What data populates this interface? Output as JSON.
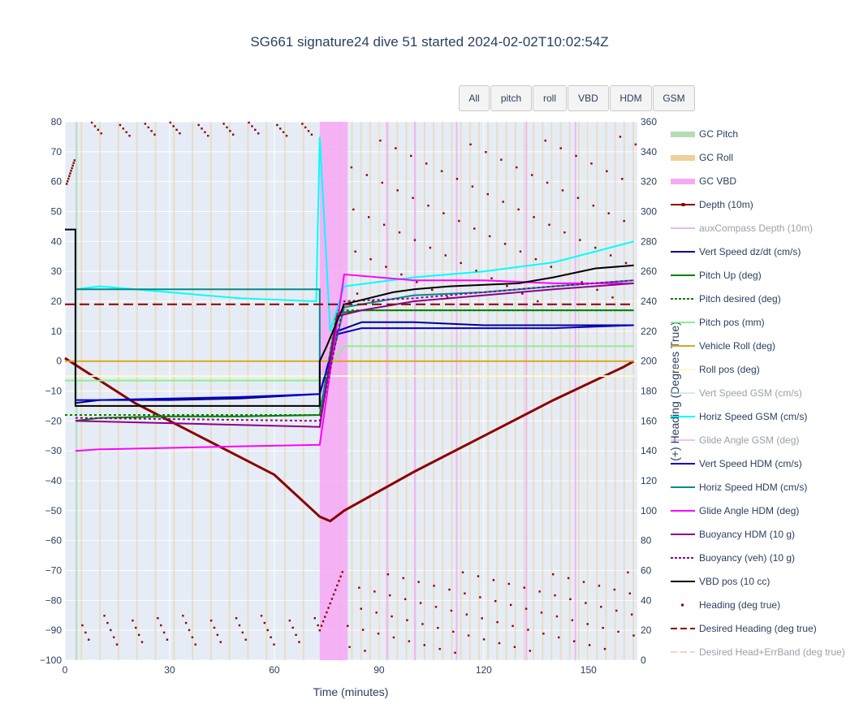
{
  "chart_data": {
    "type": "line",
    "title": "SG661 signature24 dive 51 started 2024-02-02T10:02:54Z",
    "xlabel": "Time (minutes)",
    "ylabel": "",
    "y2label": "(+) Heading (Degrees True)",
    "xlim": [
      0,
      164
    ],
    "ylim": [
      -100,
      80
    ],
    "y2lim": [
      0,
      360
    ],
    "xticks": [
      "0",
      "30",
      "60",
      "90",
      "120",
      "150"
    ],
    "yticks": [
      "80",
      "70",
      "60",
      "50",
      "40",
      "30",
      "20",
      "10",
      "0",
      "−10",
      "−20",
      "−30",
      "−40",
      "−50",
      "−60",
      "−70",
      "−80",
      "−90",
      "−100"
    ],
    "y2ticks": [
      "360",
      "340",
      "320",
      "300",
      "280",
      "260",
      "240",
      "220",
      "200",
      "180",
      "160",
      "140",
      "120",
      "100",
      "80",
      "60",
      "40",
      "20",
      "0"
    ],
    "grid": true,
    "legend_position": "right",
    "gc_vbd_band": [
      73,
      81
    ],
    "series": [
      {
        "name": "GC Pitch",
        "color": "#b6dcb6",
        "style": "band"
      },
      {
        "name": "GC Roll",
        "color": "#ecd198",
        "style": "band"
      },
      {
        "name": "GC VBD",
        "color": "#f7a8f5",
        "style": "band"
      },
      {
        "name": "Depth (10m)",
        "color": "#8b0000",
        "style": "line+marker",
        "x": [
          0,
          20,
          40,
          60,
          73,
          76,
          80,
          100,
          120,
          140,
          160,
          163
        ],
        "y": [
          1,
          -14,
          -26,
          -38,
          -52,
          -53.5,
          -50,
          -37,
          -25,
          -13,
          -2,
          0
        ]
      },
      {
        "name": "auxCompass Depth (10m)",
        "color": "#c17fd6",
        "style": "line",
        "visible": false
      },
      {
        "name": "Vert Speed dz/dt (cm/s)",
        "color": "#00008b",
        "style": "line",
        "x": [
          3,
          10,
          30,
          50,
          73,
          78,
          85,
          100,
          120,
          140,
          163
        ],
        "y": [
          -14,
          -13,
          -13,
          -12.5,
          -11,
          10,
          13,
          13,
          12,
          12,
          12
        ]
      },
      {
        "name": "Pitch Up (deg)",
        "color": "#008000",
        "style": "line",
        "x": [
          3,
          10,
          30,
          50,
          73,
          78,
          85,
          100,
          120,
          140,
          163
        ],
        "y": [
          -20,
          -19,
          -18.5,
          -18.5,
          -18,
          16,
          17,
          17,
          17,
          17,
          17
        ]
      },
      {
        "name": "Pitch desired (deg)",
        "color": "#008000",
        "style": "dot",
        "x": [
          0,
          73,
          78,
          163
        ],
        "y": [
          -18,
          -18,
          17,
          17
        ]
      },
      {
        "name": "Pitch pos (mm)",
        "color": "#90ee90",
        "style": "line",
        "x": [
          0,
          73,
          80,
          163
        ],
        "y": [
          -6.5,
          -6.5,
          5,
          5
        ]
      },
      {
        "name": "Vehicle Roll (deg)",
        "color": "#daa520",
        "style": "line",
        "x": [
          0,
          73,
          163
        ],
        "y": [
          0,
          0,
          0
        ]
      },
      {
        "name": "Roll pos (deg)",
        "color": "#fffacd",
        "style": "line",
        "x": [
          0,
          163
        ],
        "y": [
          -5,
          -5
        ]
      },
      {
        "name": "Vert Speed GSM (cm/s)",
        "color": "#add8e6",
        "style": "line",
        "visible": false
      },
      {
        "name": "Horiz Speed GSM (cm/s)",
        "color": "#00ffff",
        "style": "line",
        "x": [
          3,
          10,
          30,
          50,
          72,
          73,
          76,
          80,
          100,
          120,
          140,
          163
        ],
        "y": [
          24,
          25,
          23,
          21,
          20,
          75,
          10,
          25,
          28,
          30,
          33,
          40
        ]
      },
      {
        "name": "Glide Angle GSM (deg)",
        "color": "#ee82ee",
        "style": "line",
        "visible": false
      },
      {
        "name": "Vert Speed HDM (cm/s)",
        "color": "#0000cd",
        "style": "line",
        "x": [
          3,
          10,
          30,
          50,
          73,
          78,
          85,
          100,
          120,
          140,
          163
        ],
        "y": [
          -13,
          -13,
          -12.5,
          -12,
          -11,
          9,
          11,
          11,
          11,
          11,
          12
        ]
      },
      {
        "name": "Horiz Speed HDM (cm/s)",
        "color": "#008b8b",
        "style": "line",
        "x": [
          3,
          73,
          73,
          80,
          100,
          120,
          140,
          163
        ],
        "y": [
          24,
          24,
          -16,
          18,
          22,
          23,
          25,
          27
        ]
      },
      {
        "name": "Glide Angle HDM (deg)",
        "color": "#ff00ff",
        "style": "line",
        "x": [
          3,
          10,
          30,
          50,
          73,
          80,
          100,
          120,
          140,
          163
        ],
        "y": [
          -30,
          -29.5,
          -29,
          -28.5,
          -28,
          29,
          27,
          27,
          26,
          26
        ]
      },
      {
        "name": "Buoyancy HDM (10 g)",
        "color": "#8b008b",
        "style": "line",
        "x": [
          3,
          73,
          78,
          85,
          100,
          120,
          140,
          163
        ],
        "y": [
          -20,
          -22,
          15,
          17,
          20,
          22,
          24,
          26
        ]
      },
      {
        "name": "Buoyancy (veh) (10 g)",
        "color": "#8b008b",
        "style": "dot",
        "x": [
          3,
          73,
          80,
          100,
          120,
          140,
          163
        ],
        "y": [
          -19,
          -20,
          20,
          21,
          23,
          25,
          27
        ]
      },
      {
        "name": "VBD pos (10 cc)",
        "color": "#000000",
        "style": "line",
        "x": [
          0,
          3,
          3,
          73,
          73,
          75,
          80,
          94,
          100,
          110,
          130,
          140,
          152,
          163
        ],
        "y": [
          44,
          44,
          -15,
          -15,
          0,
          5,
          19,
          23,
          24,
          25,
          26,
          28,
          31,
          32
        ]
      },
      {
        "name": "Heading (deg true)",
        "color": "#8b0000",
        "style": "markers",
        "axis": "y2"
      },
      {
        "name": "Desired Heading (deg true)",
        "color": "#8b0000",
        "style": "dash",
        "axis": "y2",
        "x": [
          0,
          163
        ],
        "y": [
          238,
          238
        ]
      },
      {
        "name": "Desired Head+ErrBand (deg true)",
        "color": "#e9a98e",
        "style": "dash",
        "axis": "y2",
        "visible": false
      }
    ]
  },
  "buttons": [
    "All",
    "pitch",
    "roll",
    "VBD",
    "HDM",
    "GSM"
  ]
}
